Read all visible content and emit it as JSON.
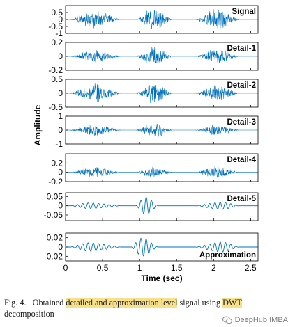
{
  "chart_data": {
    "type": "line",
    "ylabel": "Amplitude",
    "xlabel": "Time (sec)",
    "xlim": [
      0,
      2.6
    ],
    "x_ticks": [
      "0",
      "0.5",
      "1",
      "1.5",
      "2",
      "2.5"
    ],
    "x_tick_values": [
      0,
      0.5,
      1,
      1.5,
      2,
      2.5
    ],
    "series_color": "#0072BD",
    "panels": [
      {
        "label": "Signal",
        "ylim": [
          -1,
          1
        ],
        "yticks": [
          {
            "v": 0.5,
            "t": "0.5"
          },
          {
            "v": 0,
            "t": "0"
          },
          {
            "v": -0.5,
            "t": "-0.5"
          },
          {
            "v": -1,
            "t": "-1"
          }
        ],
        "bursts": [
          [
            0.05,
            0.75,
            0.75
          ],
          [
            0.95,
            1.45,
            0.9
          ],
          [
            1.75,
            2.35,
            0.85
          ]
        ]
      },
      {
        "label": "Detail-1",
        "ylim": [
          -0.2,
          0.2
        ],
        "yticks": [
          {
            "v": 0.2,
            "t": "0.2"
          },
          {
            "v": 0,
            "t": "0"
          },
          {
            "v": -0.2,
            "t": "-0.2"
          }
        ],
        "bursts": [
          [
            0.05,
            0.75,
            0.1
          ],
          [
            0.95,
            1.45,
            0.16
          ],
          [
            1.75,
            2.35,
            0.12
          ]
        ]
      },
      {
        "label": "Detail-2",
        "ylim": [
          -0.5,
          0.5
        ],
        "yticks": [
          {
            "v": 0.5,
            "t": "0.5"
          },
          {
            "v": 0,
            "t": "0"
          },
          {
            "v": -0.5,
            "t": "-0.5"
          }
        ],
        "bursts": [
          [
            0.05,
            0.75,
            0.38
          ],
          [
            0.95,
            1.45,
            0.42
          ],
          [
            1.75,
            2.35,
            0.32
          ]
        ]
      },
      {
        "label": "Detail-3",
        "ylim": [
          -1,
          1
        ],
        "yticks": [
          {
            "v": 1,
            "t": "1"
          },
          {
            "v": 0,
            "t": "0"
          },
          {
            "v": -1,
            "t": "-1"
          }
        ],
        "bursts": [
          [
            0.05,
            0.75,
            0.5
          ],
          [
            0.95,
            1.45,
            0.6
          ],
          [
            1.75,
            2.35,
            0.45
          ]
        ]
      },
      {
        "label": "Detail-4",
        "ylim": [
          -0.2,
          0.4
        ],
        "yticks": [
          {
            "v": 0.2,
            "t": "0.2"
          },
          {
            "v": 0,
            "t": "0"
          },
          {
            "v": -0.2,
            "t": "-0.2"
          }
        ],
        "bursts": [
          [
            0.05,
            0.75,
            0.12
          ],
          [
            0.95,
            1.45,
            0.14
          ],
          [
            1.75,
            2.35,
            0.16
          ]
        ]
      },
      {
        "label": "Detail-5",
        "ylim": [
          -0.08,
          0.07
        ],
        "yticks": [
          {
            "v": 0.05,
            "t": "0.05"
          },
          {
            "v": 0,
            "t": "0"
          },
          {
            "v": -0.05,
            "t": "-0.05"
          }
        ],
        "bursts": [
          [
            0.05,
            0.75,
            0.02
          ],
          [
            0.95,
            1.25,
            0.065
          ],
          [
            1.75,
            2.35,
            0.025
          ]
        ]
      },
      {
        "label": "Approximation",
        "ylim": [
          -0.03,
          0.03
        ],
        "yticks": [
          {
            "v": 0.02,
            "t": "0.02"
          },
          {
            "v": 0,
            "t": "0"
          },
          {
            "v": -0.02,
            "t": "-0.02"
          }
        ],
        "bursts": [
          [
            0.05,
            0.75,
            0.012
          ],
          [
            0.88,
            1.25,
            0.025
          ],
          [
            1.75,
            2.35,
            0.014
          ]
        ]
      }
    ]
  },
  "caption": {
    "fig_label": "Fig. 4.",
    "text_1": "Obtained",
    "highlight_1": "detailed and approximation level",
    "text_2": "signal using",
    "highlight_2": "DWT",
    "text_3": "decomposition"
  },
  "watermark": {
    "text": "DeepHub IMBA"
  }
}
